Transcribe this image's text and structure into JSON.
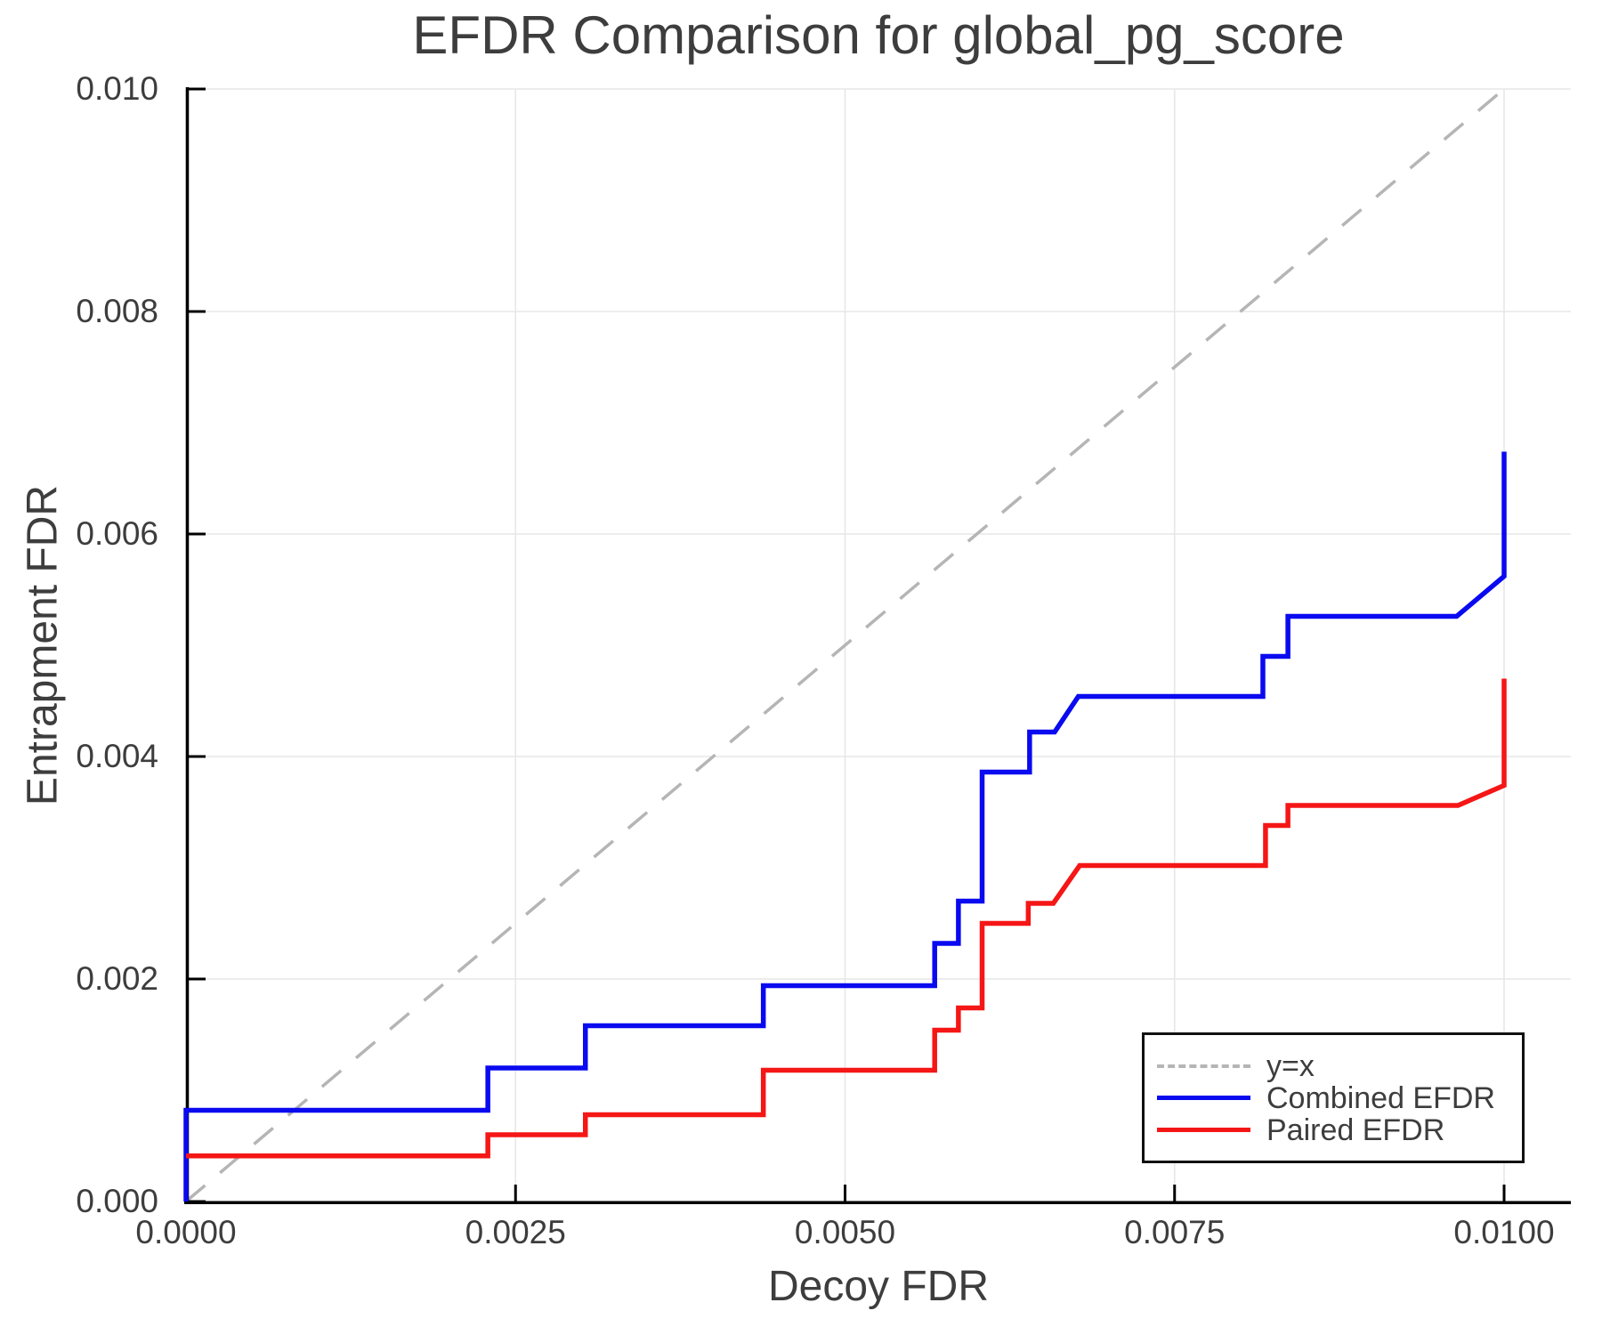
{
  "title": "EFDR Comparison for global_pg_score",
  "axes": {
    "x": {
      "label": "Decoy FDR",
      "ticks": [
        {
          "label": "0.0000",
          "value": 0.0
        },
        {
          "label": "0.0025",
          "value": 0.0025
        },
        {
          "label": "0.0050",
          "value": 0.005
        },
        {
          "label": "0.0075",
          "value": 0.0075
        },
        {
          "label": "0.0100",
          "value": 0.01
        }
      ],
      "range": [
        0.0,
        0.0105
      ]
    },
    "y": {
      "label": "Entrapment FDR",
      "ticks": [
        {
          "label": "0.000",
          "value": 0.0
        },
        {
          "label": "0.002",
          "value": 0.002
        },
        {
          "label": "0.004",
          "value": 0.004
        },
        {
          "label": "0.006",
          "value": 0.006
        },
        {
          "label": "0.008",
          "value": 0.008
        },
        {
          "label": "0.010",
          "value": 0.01
        }
      ],
      "range": [
        0.0,
        0.01
      ]
    }
  },
  "legend": {
    "items": [
      {
        "label": "y=x",
        "color": "#b5b5b5",
        "style": "dashed"
      },
      {
        "label": "Combined EFDR",
        "color": "#0a0af0",
        "style": "solid"
      },
      {
        "label": "Paired EFDR",
        "color": "#f51616",
        "style": "solid"
      }
    ]
  },
  "colors": {
    "grid": "#e7e7e7",
    "spine": "#000000",
    "text": "#3d3d3d",
    "reference": "#b5b5b5",
    "combined": "#0a0af0",
    "paired": "#f51616",
    "background": "#ffffff"
  },
  "chart_data": {
    "type": "line",
    "title": "EFDR Comparison for global_pg_score",
    "xlabel": "Decoy FDR",
    "ylabel": "Entrapment FDR",
    "xlim": [
      0.0,
      0.0105
    ],
    "ylim": [
      0.0,
      0.01
    ],
    "grid": true,
    "legend_position": "lower right",
    "reference_line": {
      "name": "y=x",
      "x": [
        0.0,
        0.01
      ],
      "y": [
        0.0,
        0.01
      ],
      "style": "dashed",
      "color": "#b5b5b5"
    },
    "series": [
      {
        "name": "Combined EFDR",
        "color": "#0a0af0",
        "x": [
          0.0,
          0.0,
          0.00229,
          0.00229,
          0.00303,
          0.00303,
          0.00438,
          0.00438,
          0.00568,
          0.00568,
          0.00586,
          0.00586,
          0.00604,
          0.00604,
          0.0064,
          0.0064,
          0.00659,
          0.00677,
          0.00817,
          0.00817,
          0.00836,
          0.00836,
          0.00964,
          0.01,
          0.01
        ],
        "y": [
          0.0,
          0.00082,
          0.00082,
          0.0012,
          0.0012,
          0.00158,
          0.00158,
          0.00194,
          0.00194,
          0.00232,
          0.00232,
          0.0027,
          0.0027,
          0.00386,
          0.00386,
          0.00422,
          0.00422,
          0.00454,
          0.00454,
          0.0049,
          0.0049,
          0.00526,
          0.00526,
          0.00562,
          0.00674
        ]
      },
      {
        "name": "Paired EFDR",
        "color": "#f51616",
        "x": [
          0.0,
          0.00229,
          0.00229,
          0.00303,
          0.00303,
          0.00438,
          0.00438,
          0.00568,
          0.00568,
          0.00586,
          0.00586,
          0.00604,
          0.00604,
          0.00639,
          0.00639,
          0.00658,
          0.00678,
          0.00819,
          0.00819,
          0.00836,
          0.00836,
          0.00965,
          0.01,
          0.01
        ],
        "y": [
          0.00041,
          0.00041,
          0.0006,
          0.0006,
          0.00078,
          0.00078,
          0.00118,
          0.00118,
          0.00154,
          0.00154,
          0.00174,
          0.00174,
          0.0025,
          0.0025,
          0.00268,
          0.00268,
          0.00302,
          0.00302,
          0.00338,
          0.00338,
          0.00356,
          0.00356,
          0.00374,
          0.0047
        ]
      }
    ]
  }
}
